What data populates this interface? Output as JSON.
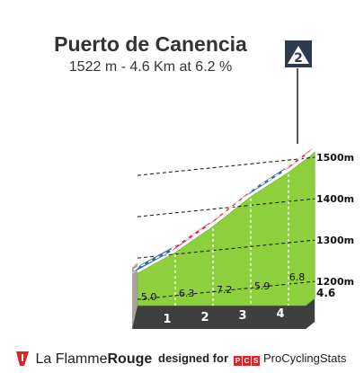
{
  "title": "Puerto de Canencia",
  "subtitle": "1522 m - 4.6 Km at 6.2 %",
  "category_badge": "2",
  "footer": {
    "brand_left_icon": "flame-rouge-flag-icon",
    "brand_left_prefix": "La Flamme",
    "brand_left_bold": "Rouge",
    "designed_by": "designed for",
    "pcs_letters": [
      "P",
      "C",
      "S"
    ],
    "pcs_name": "ProCyclingStats"
  },
  "colors": {
    "slope_fill": "#8ecf3d",
    "segment_red": "#e0223b",
    "segment_blue": "#2d6b9c",
    "base_band": "#3f3f3f",
    "side_wall": "#a9a39b",
    "badge": "#2e3a4f"
  },
  "chart_data": {
    "type": "area",
    "title": "Puerto de Canencia",
    "subtitle": "1522 m - 4.6 Km at 6.2 %",
    "x_unit": "km",
    "y_unit": "m",
    "y_ticks": [
      "1200m",
      "1300m",
      "1400m",
      "1500m"
    ],
    "y_tick_values": [
      1200,
      1300,
      1400,
      1500
    ],
    "x_km_markers": [
      "1",
      "2",
      "3",
      "4"
    ],
    "total_distance_label": "4.6",
    "total_distance_km": 4.6,
    "summit_elevation_m": 1522,
    "segments": [
      {
        "km_from": 0,
        "km_to": 1,
        "gradient": 5.0,
        "label": "5.0"
      },
      {
        "km_from": 1,
        "km_to": 2,
        "gradient": 6.3,
        "label": "6.3"
      },
      {
        "km_from": 2,
        "km_to": 3,
        "gradient": 7.2,
        "label": "7.2"
      },
      {
        "km_from": 3,
        "km_to": 4,
        "gradient": 5.9,
        "label": "5.9"
      },
      {
        "km_from": 4,
        "km_to": 4.6,
        "gradient": 6.8,
        "label": "6.8"
      }
    ],
    "category": "2",
    "legend": "none",
    "grid": true
  }
}
